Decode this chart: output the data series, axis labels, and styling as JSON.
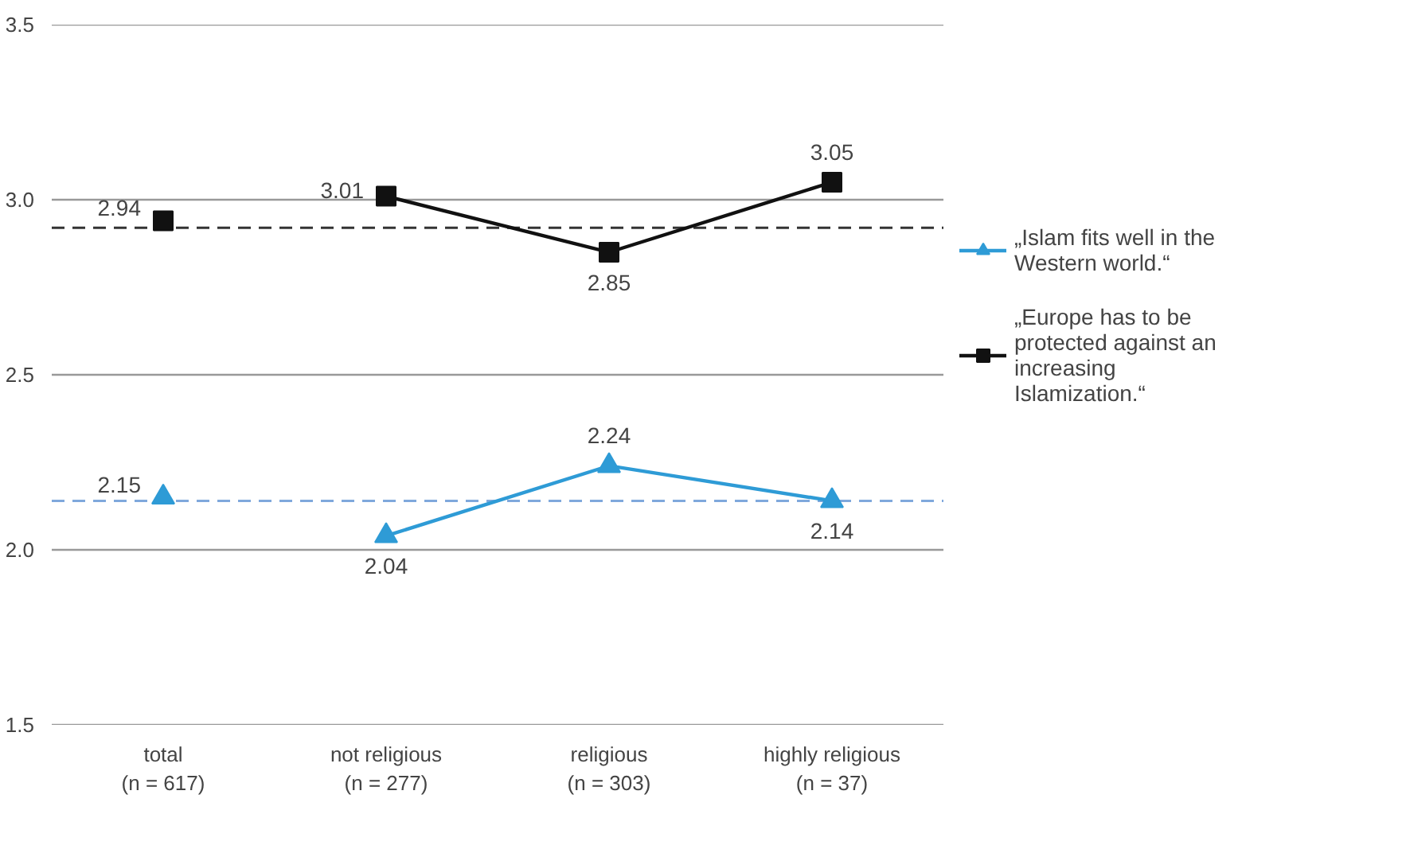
{
  "chart_data": {
    "type": "line",
    "categories": [
      "total\n(n = 617)",
      "not religious\n(n = 277)",
      "religious\n(n = 303)",
      "highly religious\n(n = 37)"
    ],
    "series": [
      {
        "name": "„Islam fits well in the Western world.“",
        "color": "#2e9bd6",
        "values": [
          null,
          2.04,
          2.24,
          2.14
        ]
      },
      {
        "name": "„Europe has to be protected against an increasing Islamization.“",
        "color": "#111111",
        "values": [
          null,
          3.01,
          2.85,
          3.05
        ],
        "marker": "square"
      },
      {
        "type": "scatter",
        "color": "#2e9bd6",
        "values": [
          2.15,
          null,
          null,
          null
        ]
      },
      {
        "type": "scatter",
        "color": "#111111",
        "values": [
          2.94,
          null,
          null,
          null
        ],
        "marker": "square"
      }
    ],
    "ylim": [
      1.5,
      3.5
    ],
    "yticks": [
      1.5,
      {
        "value": 2,
        "label": "2.0"
      },
      2.5,
      {
        "value": 3,
        "label": "3.0"
      },
      3.5
    ],
    "ref_lines": [
      {
        "axis": "y",
        "value": 2.92,
        "color": "#333333",
        "line_style": "dashed"
      },
      {
        "axis": "y",
        "value": 2.14,
        "color": "#7fa8dc",
        "line_style": "dashed"
      }
    ],
    "grid": "y",
    "legend": "right",
    "marker": "triangle",
    "data_labels": true
  }
}
